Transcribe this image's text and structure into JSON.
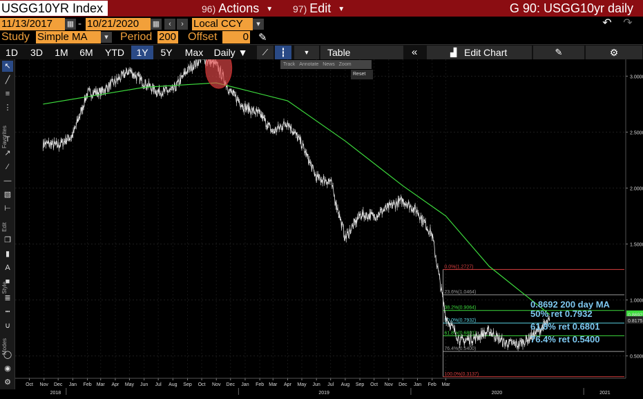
{
  "titlebar": {
    "ticker": "USGG10YR Index",
    "actions_num": "96)",
    "actions_label": "Actions",
    "edit_num": "97)",
    "edit_label": "Edit",
    "window_title": "G 90: USGG10yr daily"
  },
  "daterange": {
    "start": "11/13/2017",
    "dash": "-",
    "end": "10/21/2020",
    "currency": "Local CCY"
  },
  "study": {
    "study_label": "Study",
    "study_value": "Simple MA",
    "period_label": "Period",
    "period_value": "200",
    "offset_label": "Offset",
    "offset_value": "0"
  },
  "tabs": {
    "ranges": [
      "1D",
      "3D",
      "1M",
      "6M",
      "YTD",
      "1Y",
      "5Y",
      "Max"
    ],
    "active": "1Y",
    "frequency": "Daily",
    "table": "Table",
    "edit_chart": "Edit Chart"
  },
  "zoom_toolbar": {
    "items": [
      "Track",
      "Annotate",
      "News",
      "Zoom"
    ],
    "reset": "Reset"
  },
  "palette_labels": [
    "Favorites",
    "Edit",
    "Style",
    "Modes"
  ],
  "colors": {
    "price": "#e6e6e6",
    "ma": "#3ddc3d",
    "fib_top": "#d94040",
    "fib_mid": "#3ddc3d",
    "fib_50": "#5bd6e6",
    "fib_gray": "#9a9a9a",
    "highlight": "#e84a4a",
    "annotation": "#7ec8f0"
  },
  "chart_data": {
    "type": "line",
    "series": [
      {
        "name": "",
        "style": "line",
        "x": [
          "2017-11-13",
          "2017-12-15",
          "2018-01-15",
          "2018-02-15",
          "2018-03-15",
          "2018-04-15",
          "2018-05-15",
          "2018-06-15",
          "2018-07-15",
          "2018-08-15",
          "2018-09-15",
          "2018-10-15",
          "2018-11-15",
          "2018-12-15",
          "2019-01-15",
          "2019-02-15",
          "2019-03-15",
          "2019-04-15",
          "2019-05-15",
          "2019-06-15",
          "2019-07-15",
          "2019-08-15",
          "2019-09-15",
          "2019-10-15",
          "2019-11-15",
          "2019-12-15",
          "2020-01-15",
          "2020-02-15",
          "2020-03-15",
          "2020-04-15",
          "2020-05-15",
          "2020-06-15",
          "2020-07-15",
          "2020-08-15",
          "2020-09-15",
          "2020-10-21"
        ],
        "y": [
          2.4,
          2.38,
          2.47,
          2.85,
          2.86,
          2.95,
          3.05,
          2.94,
          2.86,
          2.87,
          3.05,
          3.16,
          3.1,
          2.86,
          2.72,
          2.66,
          2.5,
          2.59,
          2.39,
          2.09,
          2.06,
          1.55,
          1.76,
          1.75,
          1.83,
          1.89,
          1.79,
          1.58,
          0.85,
          0.63,
          0.66,
          0.72,
          0.62,
          0.6,
          0.68,
          0.8175
        ]
      },
      {
        "name": "",
        "style": "line",
        "x": [
          "2017-11-13",
          "2018-06-15",
          "2018-11-15",
          "2019-04-15",
          "2019-08-15",
          "2019-12-15",
          "2020-03-15",
          "2020-06-15",
          "2020-10-21"
        ],
        "y": [
          2.75,
          2.9,
          2.94,
          2.78,
          2.42,
          2.02,
          1.75,
          1.3,
          0.8692
        ]
      }
    ],
    "fibonacci": [
      {
        "label": "0.0%(1.2727)",
        "value": 1.2727,
        "color": "#d94040"
      },
      {
        "label": "23.6%(1.0464)",
        "value": 1.0464,
        "color": "#9a9a9a"
      },
      {
        "label": "38.2%(0.9064)",
        "value": 0.9064,
        "color": "#3ddc3d"
      },
      {
        "label": "50.0%(0.7932)",
        "value": 0.7932,
        "color": "#5bd6e6"
      },
      {
        "label": "61.8%(0.6801)",
        "value": 0.6801,
        "color": "#3ddc3d"
      },
      {
        "label": "76.4%(0.5400)",
        "value": 0.54,
        "color": "#9a9a9a"
      },
      {
        "label": "100.0%(0.3137)",
        "value": 0.3137,
        "color": "#d94040"
      }
    ],
    "fib_start": "2020-03-09",
    "annotations": [
      {
        "text": "0.8692 200 day MA",
        "value": 0.8692
      },
      {
        "text": "50% ret 0.7932",
        "value": 0.7932
      },
      {
        "text": "61.8% ret 0.6801",
        "value": 0.6801
      },
      {
        "text": "76.4% ret 0.5400",
        "value": 0.54
      }
    ],
    "last_value_badges": [
      {
        "text": "0.8692",
        "color": "#3ddc3d",
        "value": 0.8692
      },
      {
        "text": "0.8175",
        "color": "#222222",
        "value": 0.8175
      }
    ],
    "highlight_date": "2018-11-20",
    "highlight_value": 3.07,
    "ylim": [
      0.3,
      3.15
    ],
    "xlim": [
      "2017-09-15",
      "2021-03-31"
    ],
    "y_ticks": [
      "0.5000",
      "1.0000",
      "1.5000",
      "2.0000",
      "2.5000",
      "3.0000"
    ],
    "x_months": [
      "Oct",
      "Nov",
      "Dec",
      "Jan",
      "Feb",
      "Mar",
      "Apr",
      "May",
      "Jun",
      "Jul",
      "Aug",
      "Sep",
      "Oct",
      "Nov",
      "Dec",
      "Jan",
      "Feb",
      "Mar",
      "Apr",
      "May",
      "Jun",
      "Jul",
      "Aug",
      "Sep",
      "Oct",
      "Nov",
      "Dec",
      "Jan",
      "Feb",
      "Mar"
    ],
    "x_years": [
      "2018",
      "2019",
      "2020",
      "2021"
    ],
    "grid": true,
    "legend": "none"
  }
}
